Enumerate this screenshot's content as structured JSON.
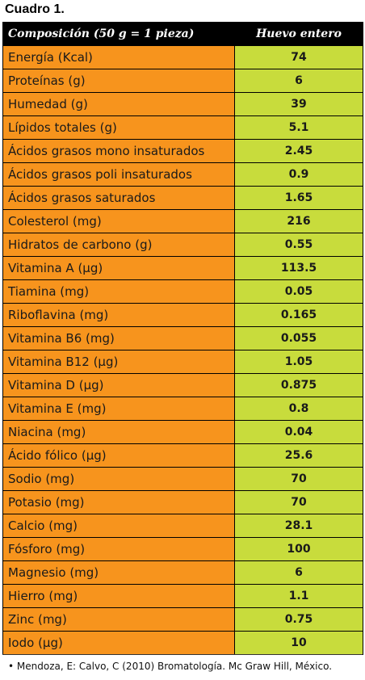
{
  "caption": "Cuadro 1.",
  "table": {
    "header": [
      "Composición (50 g = 1 pieza)",
      "Huevo entero"
    ],
    "rows": [
      {
        "name": "Energía (Kcal)",
        "value": "74"
      },
      {
        "name": "Proteínas (g)",
        "value": "6"
      },
      {
        "name": "Humedad (g)",
        "value": "39"
      },
      {
        "name": "Lípidos totales (g)",
        "value": "5.1"
      },
      {
        "name": "Ácidos grasos mono insaturados",
        "value": "2.45"
      },
      {
        "name": "Ácidos grasos poli insaturados",
        "value": "0.9"
      },
      {
        "name": "Ácidos grasos saturados",
        "value": "1.65"
      },
      {
        "name": "Colesterol (mg)",
        "value": "216"
      },
      {
        "name": "Hidratos de carbono (g)",
        "value": "0.55"
      },
      {
        "name": "Vitamina A (µg)",
        "value": "113.5"
      },
      {
        "name": "Tiamina (mg)",
        "value": "0.05"
      },
      {
        "name": "Riboflavina (mg)",
        "value": "0.165"
      },
      {
        "name": "Vitamina B6 (mg)",
        "value": "0.055"
      },
      {
        "name": "Vitamina B12 (µg)",
        "value": "1.05"
      },
      {
        "name": "Vitamina D (µg)",
        "value": "0.875"
      },
      {
        "name": "Vitamina E (mg)",
        "value": "0.8"
      },
      {
        "name": "Niacina (mg)",
        "value": "0.04"
      },
      {
        "name": "Ácido fólico (µg)",
        "value": "25.6"
      },
      {
        "name": "Sodio (mg)",
        "value": "70"
      },
      {
        "name": "Potasio (mg)",
        "value": "70"
      },
      {
        "name": "Calcio (mg)",
        "value": "28.1"
      },
      {
        "name": "Fósforo (mg)",
        "value": "100"
      },
      {
        "name": "Magnesio (mg)",
        "value": "6"
      },
      {
        "name": "Hierro (mg)",
        "value": "1.1"
      },
      {
        "name": "Zinc (mg)",
        "value": "0.75"
      },
      {
        "name": "Iodo (µg)",
        "value": "10"
      }
    ]
  },
  "footnote": "• Mendoza, E: Calvo, C (2010) Bromatología. Mc Graw Hill, México.",
  "colors": {
    "name_column": "#f7941d",
    "value_column": "#c8dc3c",
    "header": "#000000"
  }
}
